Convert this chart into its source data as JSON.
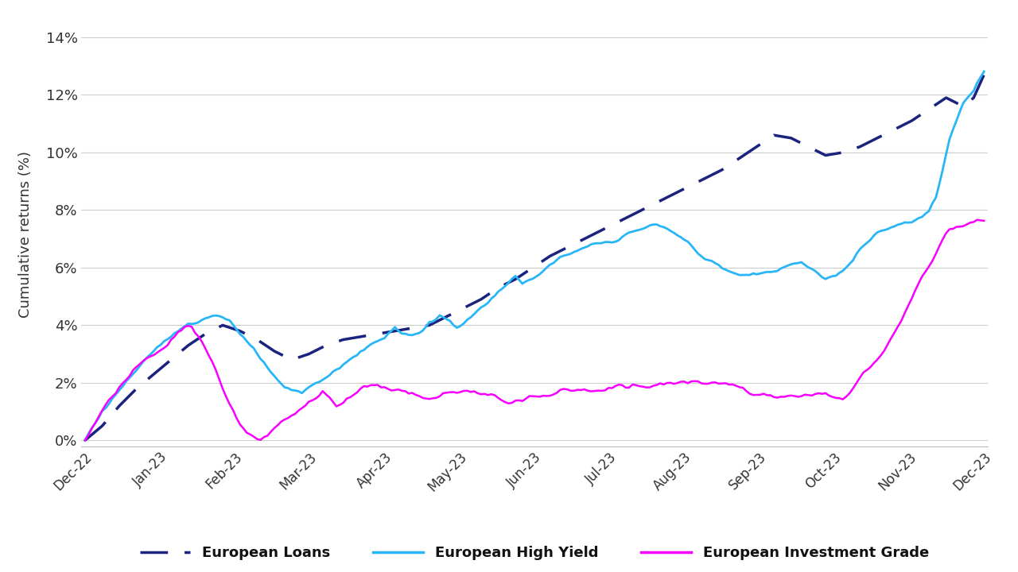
{
  "title": "",
  "ylabel": "Cumulative returns (%)",
  "ylim": [
    -0.002,
    0.145
  ],
  "yticks": [
    0.0,
    0.02,
    0.04,
    0.06,
    0.08,
    0.1,
    0.12,
    0.14
  ],
  "ytick_labels": [
    "0%",
    "2%",
    "4%",
    "6%",
    "8%",
    "10%",
    "12%",
    "14%"
  ],
  "xtick_labels": [
    "Dec-22",
    "Jan-23",
    "Feb-23",
    "Mar-23",
    "Apr-23",
    "May-23",
    "Jun-23",
    "Jul-23",
    "Aug-23",
    "Sep-23",
    "Oct-23",
    "Nov-23",
    "Dec-23"
  ],
  "loans_color": "#1a237e",
  "hy_color": "#29b6f6",
  "ig_color": "#f700ff",
  "background_color": "#ffffff",
  "grid_color": "#cccccc",
  "legend_labels": [
    "European Loans",
    "European High Yield",
    "European Investment Grade"
  ],
  "n_points": 262,
  "n_ticks": 13,
  "loans_waypoints": [
    [
      0,
      0.0
    ],
    [
      5,
      0.005
    ],
    [
      10,
      0.012
    ],
    [
      15,
      0.018
    ],
    [
      20,
      0.023
    ],
    [
      25,
      0.028
    ],
    [
      30,
      0.033
    ],
    [
      35,
      0.037
    ],
    [
      40,
      0.04
    ],
    [
      45,
      0.038
    ],
    [
      50,
      0.035
    ],
    [
      55,
      0.031
    ],
    [
      60,
      0.028
    ],
    [
      65,
      0.03
    ],
    [
      70,
      0.033
    ],
    [
      75,
      0.035
    ],
    [
      80,
      0.036
    ],
    [
      85,
      0.037
    ],
    [
      90,
      0.038
    ],
    [
      95,
      0.039
    ],
    [
      100,
      0.04
    ],
    [
      105,
      0.043
    ],
    [
      110,
      0.046
    ],
    [
      115,
      0.049
    ],
    [
      120,
      0.053
    ],
    [
      125,
      0.056
    ],
    [
      130,
      0.06
    ],
    [
      135,
      0.064
    ],
    [
      140,
      0.067
    ],
    [
      145,
      0.07
    ],
    [
      150,
      0.073
    ],
    [
      155,
      0.076
    ],
    [
      160,
      0.079
    ],
    [
      165,
      0.082
    ],
    [
      170,
      0.085
    ],
    [
      175,
      0.088
    ],
    [
      180,
      0.091
    ],
    [
      185,
      0.094
    ],
    [
      190,
      0.098
    ],
    [
      195,
      0.102
    ],
    [
      200,
      0.106
    ],
    [
      205,
      0.105
    ],
    [
      210,
      0.102
    ],
    [
      215,
      0.099
    ],
    [
      220,
      0.1
    ],
    [
      225,
      0.102
    ],
    [
      230,
      0.105
    ],
    [
      235,
      0.108
    ],
    [
      240,
      0.111
    ],
    [
      245,
      0.115
    ],
    [
      250,
      0.119
    ],
    [
      255,
      0.116
    ],
    [
      258,
      0.119
    ],
    [
      261,
      0.127
    ]
  ],
  "hy_waypoints": [
    [
      0,
      0.0
    ],
    [
      5,
      0.01
    ],
    [
      10,
      0.018
    ],
    [
      15,
      0.025
    ],
    [
      20,
      0.03
    ],
    [
      25,
      0.035
    ],
    [
      30,
      0.04
    ],
    [
      35,
      0.043
    ],
    [
      38,
      0.044
    ],
    [
      42,
      0.043
    ],
    [
      45,
      0.038
    ],
    [
      50,
      0.03
    ],
    [
      55,
      0.022
    ],
    [
      58,
      0.017
    ],
    [
      60,
      0.016
    ],
    [
      63,
      0.015
    ],
    [
      67,
      0.018
    ],
    [
      70,
      0.02
    ],
    [
      73,
      0.023
    ],
    [
      75,
      0.025
    ],
    [
      78,
      0.028
    ],
    [
      80,
      0.03
    ],
    [
      83,
      0.032
    ],
    [
      87,
      0.035
    ],
    [
      90,
      0.038
    ],
    [
      92,
      0.036
    ],
    [
      95,
      0.035
    ],
    [
      98,
      0.037
    ],
    [
      100,
      0.04
    ],
    [
      103,
      0.042
    ],
    [
      106,
      0.04
    ],
    [
      108,
      0.038
    ],
    [
      110,
      0.04
    ],
    [
      113,
      0.043
    ],
    [
      115,
      0.045
    ],
    [
      118,
      0.048
    ],
    [
      120,
      0.051
    ],
    [
      123,
      0.054
    ],
    [
      125,
      0.056
    ],
    [
      127,
      0.053
    ],
    [
      130,
      0.055
    ],
    [
      133,
      0.058
    ],
    [
      135,
      0.06
    ],
    [
      138,
      0.062
    ],
    [
      140,
      0.063
    ],
    [
      143,
      0.064
    ],
    [
      145,
      0.065
    ],
    [
      148,
      0.066
    ],
    [
      150,
      0.066
    ],
    [
      153,
      0.067
    ],
    [
      155,
      0.068
    ],
    [
      157,
      0.07
    ],
    [
      160,
      0.071
    ],
    [
      163,
      0.072
    ],
    [
      165,
      0.073
    ],
    [
      168,
      0.072
    ],
    [
      170,
      0.071
    ],
    [
      173,
      0.069
    ],
    [
      175,
      0.067
    ],
    [
      178,
      0.063
    ],
    [
      180,
      0.061
    ],
    [
      183,
      0.059
    ],
    [
      185,
      0.058
    ],
    [
      188,
      0.057
    ],
    [
      190,
      0.056
    ],
    [
      193,
      0.056
    ],
    [
      195,
      0.057
    ],
    [
      198,
      0.058
    ],
    [
      200,
      0.058
    ],
    [
      203,
      0.059
    ],
    [
      205,
      0.06
    ],
    [
      208,
      0.061
    ],
    [
      210,
      0.059
    ],
    [
      213,
      0.057
    ],
    [
      215,
      0.055
    ],
    [
      218,
      0.056
    ],
    [
      220,
      0.058
    ],
    [
      223,
      0.062
    ],
    [
      225,
      0.066
    ],
    [
      228,
      0.07
    ],
    [
      230,
      0.073
    ],
    [
      233,
      0.074
    ],
    [
      235,
      0.075
    ],
    [
      238,
      0.076
    ],
    [
      240,
      0.076
    ],
    [
      243,
      0.078
    ],
    [
      245,
      0.08
    ],
    [
      247,
      0.085
    ],
    [
      249,
      0.095
    ],
    [
      251,
      0.105
    ],
    [
      253,
      0.112
    ],
    [
      255,
      0.118
    ],
    [
      258,
      0.122
    ],
    [
      261,
      0.128
    ]
  ],
  "ig_waypoints": [
    [
      0,
      0.0
    ],
    [
      5,
      0.01
    ],
    [
      10,
      0.018
    ],
    [
      15,
      0.026
    ],
    [
      18,
      0.03
    ],
    [
      20,
      0.032
    ],
    [
      23,
      0.035
    ],
    [
      25,
      0.038
    ],
    [
      27,
      0.041
    ],
    [
      29,
      0.043
    ],
    [
      31,
      0.043
    ],
    [
      33,
      0.04
    ],
    [
      35,
      0.035
    ],
    [
      37,
      0.03
    ],
    [
      39,
      0.024
    ],
    [
      41,
      0.018
    ],
    [
      43,
      0.013
    ],
    [
      45,
      0.008
    ],
    [
      47,
      0.005
    ],
    [
      49,
      0.003
    ],
    [
      51,
      0.002
    ],
    [
      53,
      0.003
    ],
    [
      55,
      0.006
    ],
    [
      57,
      0.008
    ],
    [
      59,
      0.01
    ],
    [
      61,
      0.012
    ],
    [
      63,
      0.014
    ],
    [
      65,
      0.017
    ],
    [
      67,
      0.018
    ],
    [
      69,
      0.02
    ],
    [
      71,
      0.018
    ],
    [
      73,
      0.015
    ],
    [
      75,
      0.016
    ],
    [
      77,
      0.018
    ],
    [
      79,
      0.02
    ],
    [
      81,
      0.022
    ],
    [
      83,
      0.023
    ],
    [
      85,
      0.023
    ],
    [
      87,
      0.022
    ],
    [
      89,
      0.021
    ],
    [
      91,
      0.022
    ],
    [
      93,
      0.022
    ],
    [
      95,
      0.021
    ],
    [
      97,
      0.021
    ],
    [
      99,
      0.02
    ],
    [
      101,
      0.02
    ],
    [
      103,
      0.021
    ],
    [
      105,
      0.022
    ],
    [
      107,
      0.022
    ],
    [
      109,
      0.023
    ],
    [
      111,
      0.023
    ],
    [
      113,
      0.023
    ],
    [
      115,
      0.022
    ],
    [
      117,
      0.022
    ],
    [
      119,
      0.022
    ],
    [
      121,
      0.021
    ],
    [
      123,
      0.02
    ],
    [
      125,
      0.021
    ],
    [
      127,
      0.021
    ],
    [
      129,
      0.022
    ],
    [
      131,
      0.022
    ],
    [
      133,
      0.023
    ],
    [
      135,
      0.023
    ],
    [
      137,
      0.024
    ],
    [
      139,
      0.025
    ],
    [
      141,
      0.025
    ],
    [
      143,
      0.025
    ],
    [
      145,
      0.026
    ],
    [
      147,
      0.025
    ],
    [
      149,
      0.025
    ],
    [
      151,
      0.025
    ],
    [
      153,
      0.026
    ],
    [
      155,
      0.027
    ],
    [
      157,
      0.027
    ],
    [
      159,
      0.028
    ],
    [
      161,
      0.028
    ],
    [
      163,
      0.028
    ],
    [
      165,
      0.028
    ],
    [
      167,
      0.029
    ],
    [
      169,
      0.029
    ],
    [
      171,
      0.029
    ],
    [
      173,
      0.029
    ],
    [
      175,
      0.029
    ],
    [
      177,
      0.029
    ],
    [
      179,
      0.028
    ],
    [
      181,
      0.028
    ],
    [
      183,
      0.028
    ],
    [
      185,
      0.028
    ],
    [
      187,
      0.027
    ],
    [
      189,
      0.027
    ],
    [
      191,
      0.027
    ],
    [
      193,
      0.025
    ],
    [
      195,
      0.024
    ],
    [
      197,
      0.024
    ],
    [
      199,
      0.023
    ],
    [
      201,
      0.023
    ],
    [
      203,
      0.023
    ],
    [
      205,
      0.023
    ],
    [
      207,
      0.022
    ],
    [
      209,
      0.022
    ],
    [
      211,
      0.021
    ],
    [
      213,
      0.022
    ],
    [
      215,
      0.022
    ],
    [
      217,
      0.022
    ],
    [
      219,
      0.022
    ],
    [
      221,
      0.023
    ],
    [
      223,
      0.025
    ],
    [
      225,
      0.028
    ],
    [
      227,
      0.03
    ],
    [
      229,
      0.033
    ],
    [
      231,
      0.036
    ],
    [
      233,
      0.04
    ],
    [
      235,
      0.044
    ],
    [
      237,
      0.048
    ],
    [
      239,
      0.053
    ],
    [
      241,
      0.058
    ],
    [
      243,
      0.062
    ],
    [
      245,
      0.066
    ],
    [
      247,
      0.071
    ],
    [
      249,
      0.076
    ],
    [
      251,
      0.079
    ],
    [
      253,
      0.08
    ],
    [
      255,
      0.08
    ],
    [
      257,
      0.081
    ],
    [
      259,
      0.083
    ],
    [
      261,
      0.083
    ]
  ]
}
